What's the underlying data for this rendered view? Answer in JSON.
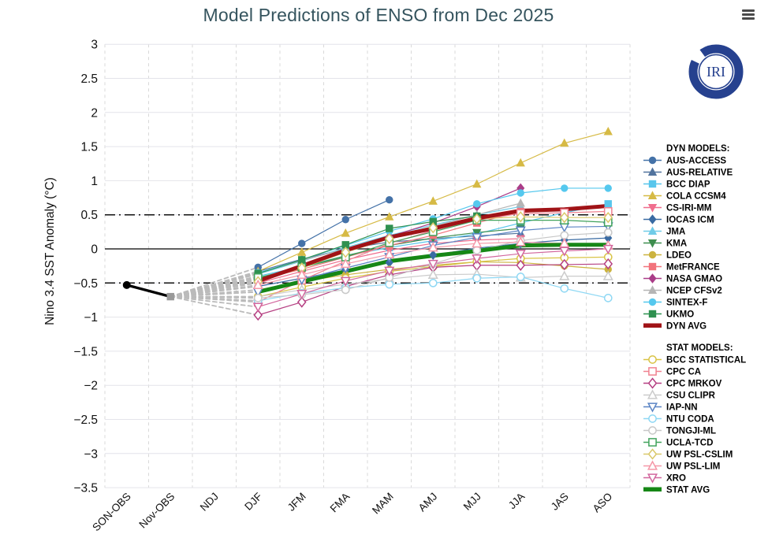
{
  "title": "Model Predictions of ENSO from Dec 2025",
  "logo": {
    "text": "IRI",
    "color": "#26418f"
  },
  "menu": {
    "icon": "hamburger-menu-icon"
  },
  "chart_data": {
    "type": "line",
    "title": "Model Predictions of ENSO from Dec 2025",
    "xlabel": "",
    "ylabel": "Nino 3.4 SST Anomaly (°C)",
    "ylim": [
      -3.5,
      3
    ],
    "ytick_step": 0.5,
    "grid": true,
    "zero_line": 0,
    "thresholds": [
      0.5,
      -0.5
    ],
    "categories": [
      "SON-OBS",
      "Nov-OBS",
      "NDJ",
      "DJF",
      "JFM",
      "FMA",
      "MAM",
      "AMJ",
      "MJJ",
      "JJA",
      "JAS",
      "ASO"
    ],
    "observations": {
      "name": "OBS",
      "color": "#000000",
      "nov_marker_color": "#999999",
      "values": [
        -0.53,
        -0.7,
        null,
        null,
        null,
        null,
        null,
        null,
        null,
        null,
        null,
        null
      ]
    },
    "fan": {
      "from_index": 1,
      "to_index": 3,
      "color": "#bbbbbb",
      "style": "dashed"
    },
    "legend": {
      "dyn_header": "DYN MODELS:",
      "stat_header": "STAT MODELS:",
      "position": "right"
    },
    "series": [
      {
        "name": "AUS-ACCESS",
        "group": "dyn",
        "color": "#4472a8",
        "marker": "circle",
        "filled": true,
        "avg": false,
        "values": [
          null,
          null,
          null,
          -0.27,
          0.08,
          0.43,
          0.72,
          null,
          null,
          null,
          null,
          null
        ]
      },
      {
        "name": "AUS-RELATIVE",
        "group": "dyn",
        "color": "#52749e",
        "marker": "triangle-up",
        "filled": true,
        "avg": false,
        "values": [
          null,
          null,
          null,
          -0.33,
          -0.15,
          0.0,
          0.1,
          0.15,
          0.19,
          0.23,
          null,
          null
        ]
      },
      {
        "name": "BCC DIAP",
        "group": "dyn",
        "color": "#59c6ec",
        "marker": "square",
        "filled": true,
        "avg": false,
        "values": [
          null,
          null,
          null,
          -0.4,
          -0.26,
          -0.1,
          0.02,
          0.12,
          0.22,
          0.38,
          0.53,
          0.66
        ]
      },
      {
        "name": "COLA CCSM4",
        "group": "dyn",
        "color": "#d6ba45",
        "marker": "triangle-up",
        "filled": true,
        "avg": false,
        "values": [
          null,
          null,
          null,
          -0.33,
          -0.05,
          0.23,
          0.47,
          0.7,
          0.95,
          1.26,
          1.55,
          1.72
        ]
      },
      {
        "name": "CS-IRI-MM",
        "group": "dyn",
        "color": "#f06e8e",
        "marker": "triangle-down",
        "filled": true,
        "avg": false,
        "values": [
          null,
          null,
          null,
          -0.5,
          -0.33,
          -0.16,
          -0.02,
          0.08,
          0.13,
          0.15,
          null,
          null
        ]
      },
      {
        "name": "IOCAS ICM",
        "group": "dyn",
        "color": "#3a6ba3",
        "marker": "diamond",
        "filled": true,
        "avg": false,
        "values": [
          null,
          null,
          null,
          -0.55,
          -0.43,
          -0.31,
          -0.2,
          -0.09,
          0.01,
          0.08,
          0.13,
          0.16
        ]
      },
      {
        "name": "JMA",
        "group": "dyn",
        "color": "#70cce8",
        "marker": "triangle-up",
        "filled": true,
        "avg": false,
        "values": [
          null,
          null,
          null,
          -0.37,
          -0.18,
          0.02,
          0.2,
          0.35,
          0.5,
          0.62,
          null,
          null
        ]
      },
      {
        "name": "KMA",
        "group": "dyn",
        "color": "#3e8e4f",
        "marker": "triangle-down",
        "filled": true,
        "avg": false,
        "values": [
          null,
          null,
          null,
          -0.43,
          -0.27,
          -0.1,
          0.05,
          0.16,
          0.24,
          0.3,
          null,
          null
        ]
      },
      {
        "name": "LDEO",
        "group": "dyn",
        "color": "#ccb33f",
        "marker": "circle",
        "filled": true,
        "avg": false,
        "values": [
          null,
          null,
          null,
          -0.6,
          -0.48,
          -0.38,
          -0.3,
          -0.24,
          -0.19,
          -0.2,
          -0.25,
          -0.3
        ]
      },
      {
        "name": "MetFRANCE",
        "group": "dyn",
        "color": "#f2737c",
        "marker": "square",
        "filled": true,
        "avg": false,
        "values": [
          null,
          null,
          null,
          -0.45,
          -0.3,
          -0.12,
          0.05,
          0.2,
          0.38,
          0.55,
          null,
          null
        ]
      },
      {
        "name": "NASA GMAO",
        "group": "dyn",
        "color": "#aa3d88",
        "marker": "diamond",
        "filled": true,
        "avg": false,
        "values": [
          null,
          null,
          null,
          -0.48,
          -0.27,
          -0.05,
          0.18,
          0.38,
          0.62,
          0.89,
          null,
          null
        ]
      },
      {
        "name": "NCEP CFSv2",
        "group": "dyn",
        "color": "#b5b5b5",
        "marker": "triangle-up",
        "filled": true,
        "avg": false,
        "values": [
          null,
          null,
          null,
          -0.35,
          -0.17,
          0.0,
          0.17,
          0.33,
          0.5,
          0.67,
          null,
          null
        ]
      },
      {
        "name": "SINTEX-F",
        "group": "dyn",
        "color": "#55c8ee",
        "marker": "circle",
        "filled": true,
        "avg": false,
        "values": [
          null,
          null,
          null,
          -0.35,
          -0.16,
          0.05,
          0.26,
          0.44,
          0.66,
          0.82,
          0.89,
          0.89
        ]
      },
      {
        "name": "UKMO",
        "group": "dyn",
        "color": "#2f9150",
        "marker": "square",
        "filled": true,
        "avg": false,
        "values": [
          null,
          null,
          null,
          -0.36,
          -0.16,
          0.06,
          0.3,
          0.4,
          0.48,
          null,
          null,
          null
        ]
      },
      {
        "name": "DYN AVG",
        "group": "dyn",
        "color": "#a01317",
        "marker": "line",
        "filled": true,
        "avg": true,
        "values": [
          null,
          null,
          null,
          -0.47,
          -0.25,
          -0.02,
          0.17,
          0.3,
          0.45,
          0.56,
          0.58,
          0.63
        ]
      },
      {
        "name": "BCC STATISTICAL",
        "group": "stat",
        "color": "#d9c447",
        "marker": "circle",
        "filled": false,
        "avg": false,
        "values": [
          null,
          null,
          null,
          -0.7,
          -0.56,
          -0.43,
          -0.33,
          -0.26,
          -0.19,
          -0.14,
          -0.13,
          -0.12
        ]
      },
      {
        "name": "CPC CA",
        "group": "stat",
        "color": "#f08290",
        "marker": "square",
        "filled": false,
        "avg": false,
        "values": [
          null,
          null,
          null,
          -0.78,
          -0.46,
          -0.18,
          0.08,
          0.27,
          0.42,
          0.52,
          0.53,
          0.55
        ]
      },
      {
        "name": "CPC MRKOV",
        "group": "stat",
        "color": "#b53f82",
        "marker": "diamond",
        "filled": false,
        "avg": false,
        "values": [
          null,
          null,
          null,
          -0.97,
          -0.78,
          -0.55,
          -0.38,
          -0.27,
          -0.24,
          -0.24,
          -0.23,
          -0.22
        ]
      },
      {
        "name": "CSU CLIPR",
        "group": "stat",
        "color": "#cccccc",
        "marker": "triangle-up",
        "filled": false,
        "avg": false,
        "values": [
          null,
          null,
          null,
          -0.7,
          -0.6,
          -0.52,
          -0.44,
          -0.38,
          -0.37,
          -0.42,
          -0.4,
          -0.4
        ]
      },
      {
        "name": "IAP-NN",
        "group": "stat",
        "color": "#5b84c4",
        "marker": "triangle-down",
        "filled": false,
        "avg": false,
        "values": [
          null,
          null,
          null,
          -0.63,
          -0.45,
          -0.28,
          -0.12,
          0.05,
          0.17,
          0.27,
          0.32,
          0.33
        ]
      },
      {
        "name": "NTU CODA",
        "group": "stat",
        "color": "#8fd8f4",
        "marker": "circle",
        "filled": false,
        "avg": false,
        "values": [
          null,
          null,
          null,
          -0.76,
          -0.65,
          -0.57,
          -0.52,
          -0.5,
          -0.43,
          -0.41,
          -0.58,
          -0.72
        ]
      },
      {
        "name": "TONGJI-ML",
        "group": "stat",
        "color": "#c8c8c8",
        "marker": "circle",
        "filled": false,
        "avg": false,
        "values": [
          null,
          null,
          null,
          -0.72,
          -0.67,
          -0.6,
          -0.42,
          -0.22,
          -0.02,
          0.12,
          0.2,
          0.24
        ]
      },
      {
        "name": "UCLA-TCD",
        "group": "stat",
        "color": "#41a35c",
        "marker": "square",
        "filled": false,
        "avg": false,
        "values": [
          null,
          null,
          null,
          -0.42,
          -0.27,
          -0.12,
          0.09,
          0.25,
          0.42,
          0.42,
          0.42,
          0.39
        ]
      },
      {
        "name": "UW PSL-CSLIM",
        "group": "stat",
        "color": "#d9c86a",
        "marker": "diamond",
        "filled": false,
        "avg": false,
        "values": [
          null,
          null,
          null,
          -0.48,
          -0.28,
          -0.05,
          0.15,
          0.31,
          0.44,
          0.47,
          0.46,
          0.46
        ]
      },
      {
        "name": "UW PSL-LIM",
        "group": "stat",
        "color": "#f598a8",
        "marker": "triangle-up",
        "filled": false,
        "avg": false,
        "values": [
          null,
          null,
          null,
          -0.53,
          -0.38,
          -0.22,
          -0.08,
          0.02,
          0.08,
          0.1,
          0.08,
          0.05
        ]
      },
      {
        "name": "XRO",
        "group": "stat",
        "color": "#d2679e",
        "marker": "triangle-down",
        "filled": false,
        "avg": false,
        "values": [
          null,
          null,
          null,
          -0.85,
          -0.66,
          -0.47,
          -0.32,
          -0.22,
          -0.14,
          -0.07,
          -0.03,
          0.0
        ]
      },
      {
        "name": "STAT AVG",
        "group": "stat",
        "color": "#168716",
        "marker": "line",
        "filled": true,
        "avg": true,
        "values": [
          null,
          null,
          null,
          -0.63,
          -0.48,
          -0.33,
          -0.18,
          -0.1,
          -0.03,
          0.05,
          0.06,
          0.06
        ]
      }
    ]
  }
}
